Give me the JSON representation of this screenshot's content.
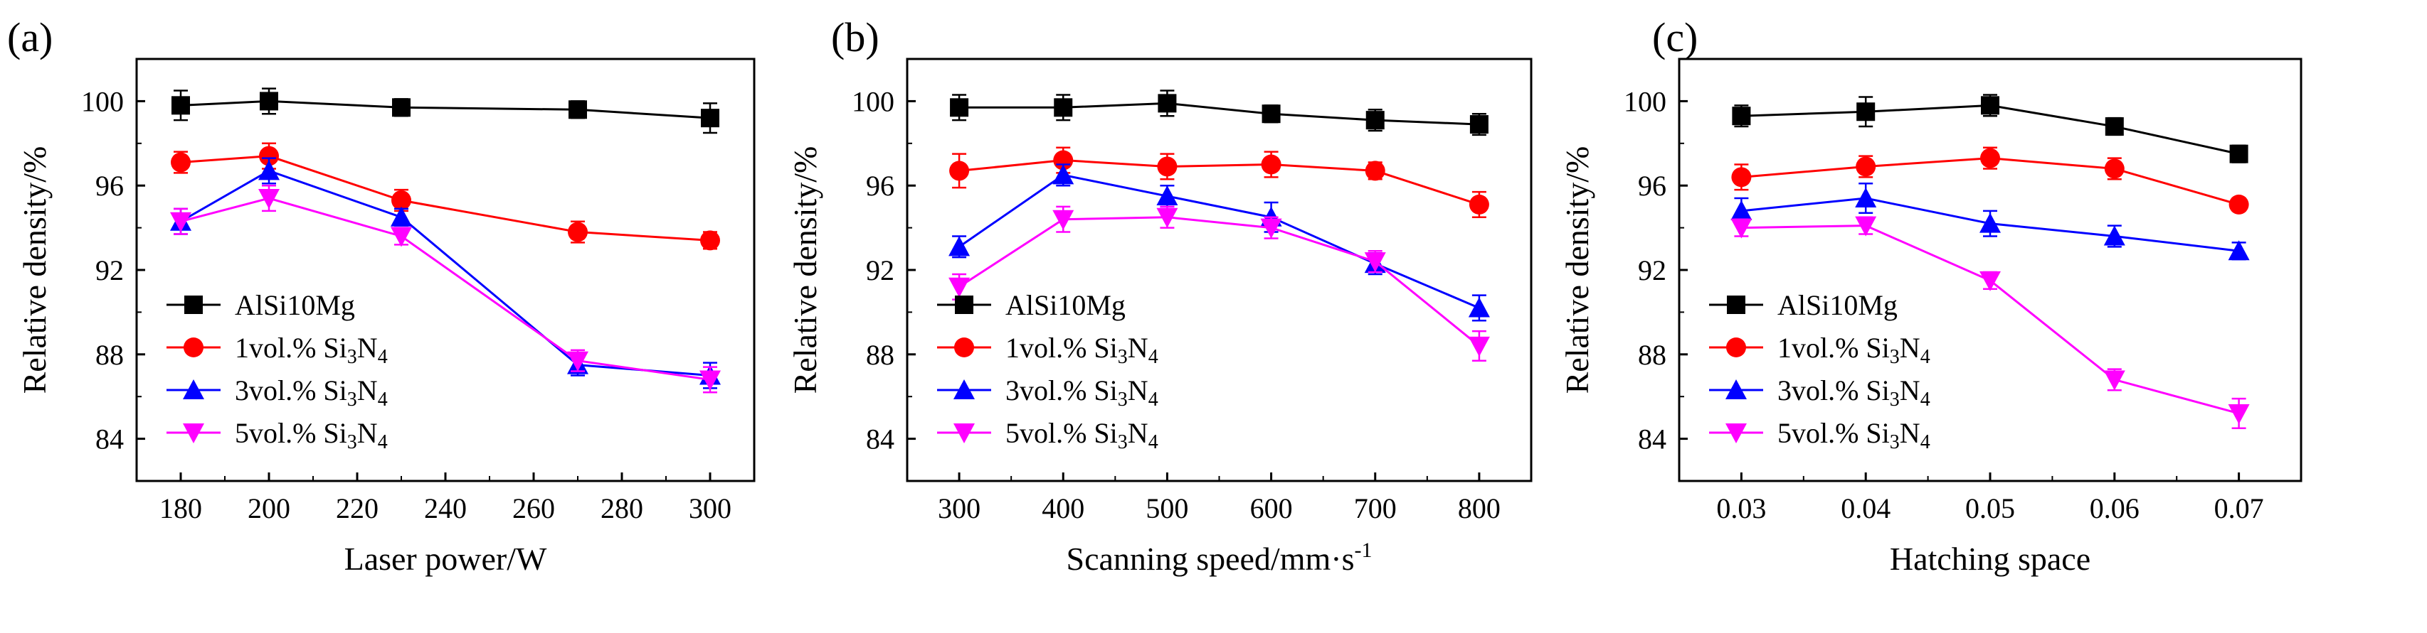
{
  "chart_data": [
    {
      "type": "line",
      "panel_label": "(a)",
      "title": "",
      "xlabel": "Laser power/W",
      "ylabel": "Relative density/%",
      "x": [
        180,
        200,
        230,
        270,
        300
      ],
      "xlim": [
        170,
        310
      ],
      "xticks": [
        180,
        200,
        220,
        240,
        260,
        280,
        300
      ],
      "ylim": [
        82,
        102
      ],
      "yticks": [
        84,
        88,
        92,
        96,
        100
      ],
      "legend_position": "bottom-left",
      "series": [
        {
          "name": "AlSi10Mg",
          "label_base": "AlSi10Mg",
          "label_sub": "",
          "label_tail": "",
          "marker": "square",
          "color": "#000000",
          "values": [
            99.8,
            100.0,
            99.7,
            99.6,
            99.2
          ],
          "errors": [
            0.7,
            0.6,
            0.4,
            0.4,
            0.7
          ]
        },
        {
          "name": "1vol.% Si3N4",
          "label_base": "1vol.% Si",
          "label_sub": "3",
          "label_tail": "N4",
          "marker": "circle",
          "color": "#ff0000",
          "values": [
            97.1,
            97.4,
            95.3,
            93.8,
            93.4
          ],
          "errors": [
            0.5,
            0.6,
            0.5,
            0.5,
            0.4
          ]
        },
        {
          "name": "3vol.% Si3N4",
          "label_base": "3vol.% Si",
          "label_sub": "3",
          "label_tail": "N4",
          "marker": "triangle-up",
          "color": "#0000ff",
          "values": [
            94.3,
            96.7,
            94.5,
            87.5,
            87.0
          ],
          "errors": [
            0.6,
            0.6,
            0.4,
            0.5,
            0.6
          ]
        },
        {
          "name": "5vol.% Si3N4",
          "label_base": "5vol.% Si",
          "label_sub": "3",
          "label_tail": "N4",
          "marker": "triangle-down",
          "color": "#ff00ff",
          "values": [
            94.3,
            95.4,
            93.6,
            87.7,
            86.8
          ],
          "errors": [
            0.6,
            0.6,
            0.4,
            0.5,
            0.6
          ]
        }
      ]
    },
    {
      "type": "line",
      "panel_label": "(b)",
      "title": "",
      "xlabel": "Scanning speed/mm·s",
      "xlabel_sup": "-1",
      "ylabel": "Relative density/%",
      "x": [
        300,
        400,
        500,
        600,
        700,
        800
      ],
      "xlim": [
        250,
        850
      ],
      "xticks": [
        300,
        400,
        500,
        600,
        700,
        800
      ],
      "ylim": [
        82,
        102
      ],
      "yticks": [
        84,
        88,
        92,
        96,
        100
      ],
      "legend_position": "bottom-left",
      "series": [
        {
          "name": "AlSi10Mg",
          "label_base": "AlSi10Mg",
          "label_sub": "",
          "label_tail": "",
          "marker": "square",
          "color": "#000000",
          "values": [
            99.7,
            99.7,
            99.9,
            99.4,
            99.1,
            98.9
          ],
          "errors": [
            0.6,
            0.6,
            0.6,
            0.4,
            0.5,
            0.5
          ]
        },
        {
          "name": "1vol.% Si3N4",
          "label_base": "1vol.% Si",
          "label_sub": "3",
          "label_tail": "N4",
          "marker": "circle",
          "color": "#ff0000",
          "values": [
            96.7,
            97.2,
            96.9,
            97.0,
            96.7,
            95.1
          ],
          "errors": [
            0.8,
            0.6,
            0.6,
            0.6,
            0.4,
            0.6
          ]
        },
        {
          "name": "3vol.% Si3N4",
          "label_base": "3vol.% Si",
          "label_sub": "3",
          "label_tail": "N4",
          "marker": "triangle-up",
          "color": "#0000ff",
          "values": [
            93.1,
            96.5,
            95.5,
            94.5,
            92.3,
            90.2
          ],
          "errors": [
            0.5,
            0.5,
            0.5,
            0.7,
            0.5,
            0.6
          ]
        },
        {
          "name": "5vol.% Si3N4",
          "label_base": "5vol.% Si",
          "label_sub": "3",
          "label_tail": "N4",
          "marker": "triangle-down",
          "color": "#ff00ff",
          "values": [
            91.2,
            94.4,
            94.5,
            94.0,
            92.4,
            88.4
          ],
          "errors": [
            0.6,
            0.6,
            0.5,
            0.5,
            0.5,
            0.7
          ]
        }
      ]
    },
    {
      "type": "line",
      "panel_label": "(c)",
      "title": "",
      "xlabel": "Hatching space",
      "ylabel": "Relative density/%",
      "x": [
        0.03,
        0.04,
        0.05,
        0.06,
        0.07
      ],
      "xlim": [
        0.025,
        0.075
      ],
      "xticks": [
        0.03,
        0.04,
        0.05,
        0.06,
        0.07
      ],
      "ylim": [
        82,
        102
      ],
      "yticks": [
        84,
        88,
        92,
        96,
        100
      ],
      "legend_position": "bottom-left",
      "series": [
        {
          "name": "AlSi10Mg",
          "label_base": "AlSi10Mg",
          "label_sub": "",
          "label_tail": "",
          "marker": "square",
          "color": "#000000",
          "values": [
            99.3,
            99.5,
            99.8,
            98.8,
            97.5
          ],
          "errors": [
            0.5,
            0.7,
            0.5,
            0.4,
            0.4
          ]
        },
        {
          "name": "1vol.% Si3N4",
          "label_base": "1vol.% Si",
          "label_sub": "3",
          "label_tail": "N4",
          "marker": "circle",
          "color": "#ff0000",
          "values": [
            96.4,
            96.9,
            97.3,
            96.8,
            95.1
          ],
          "errors": [
            0.6,
            0.5,
            0.5,
            0.5,
            0.3
          ]
        },
        {
          "name": "3vol.% Si3N4",
          "label_base": "3vol.% Si",
          "label_sub": "3",
          "label_tail": "N4",
          "marker": "triangle-up",
          "color": "#0000ff",
          "values": [
            94.8,
            95.4,
            94.2,
            93.6,
            92.9
          ],
          "errors": [
            0.6,
            0.7,
            0.6,
            0.5,
            0.4
          ]
        },
        {
          "name": "5vol.% Si3N4",
          "label_base": "5vol.% Si",
          "label_sub": "3",
          "label_tail": "N4",
          "marker": "triangle-down",
          "color": "#ff00ff",
          "values": [
            94.0,
            94.1,
            91.5,
            86.8,
            85.2
          ],
          "errors": [
            0.4,
            0.4,
            0.4,
            0.5,
            0.7
          ]
        }
      ]
    }
  ]
}
